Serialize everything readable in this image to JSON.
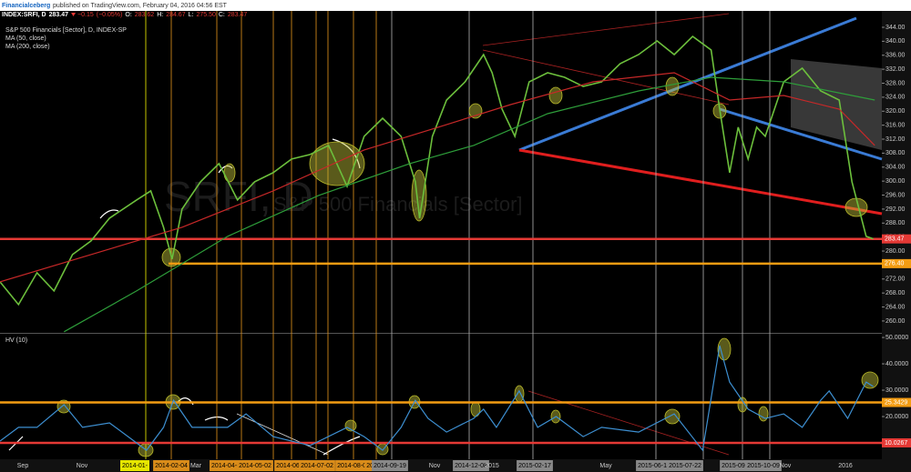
{
  "chart_data": [
    {
      "type": "line",
      "author": "Financialceberg",
      "published": "published on TradingView.com, February 04, 2016 04:56 EST",
      "symbol": "INDEX:SRFI, D",
      "last": 283.47,
      "change": {
        "value": -0.15,
        "label": "−0.15"
      },
      "change_pct": {
        "value": -0.05,
        "label": "(−0.05%)"
      },
      "ohlc_names": [
        "O:",
        "H:",
        "L:",
        "C:"
      ],
      "ohlc_values": [
        283.62,
        284.67,
        {
          "value": 275.5,
          "label": "275.50"
        },
        283.47
      ],
      "title": "S&P 500 Financials [Sector], D, INDEX-SP",
      "watermark": [
        "SRFI, D",
        "S&P 500 Financials [Sector]"
      ],
      "xlim": [
        0,
        620
      ],
      "ylim": [
        256.6,
        346.6
      ],
      "yticks": [
        {
          "value": 260,
          "label": "260.00"
        },
        {
          "value": 264,
          "label": "264.00"
        },
        {
          "value": 268,
          "label": "268.00"
        },
        {
          "value": 272,
          "label": "272.00"
        },
        {
          "value": 276,
          "label": "276.00"
        },
        {
          "value": 280,
          "label": "280.00"
        },
        {
          "value": 284,
          "label": "284.00"
        },
        {
          "value": 288,
          "label": "288.00"
        },
        {
          "value": 292,
          "label": "292.00"
        },
        {
          "value": 296,
          "label": "296.00"
        },
        {
          "value": 300,
          "label": "300.00"
        },
        {
          "value": 304,
          "label": "304.00"
        },
        {
          "value": 308,
          "label": "308.00"
        },
        {
          "value": 312,
          "label": "312.00"
        },
        {
          "value": 316,
          "label": "316.00"
        },
        {
          "value": 320,
          "label": "320.00"
        },
        {
          "value": 324,
          "label": "324.00"
        },
        {
          "value": 328,
          "label": "328.00"
        },
        {
          "value": 332,
          "label": "332.00"
        },
        {
          "value": 336,
          "label": "336.00"
        },
        {
          "value": 340,
          "label": "340.00"
        },
        {
          "value": 344,
          "label": "344.00"
        }
      ],
      "x_labels": [
        "Sep",
        "Nov",
        "2014-01-",
        "2014-02-04",
        "Mar",
        "2014-04-0",
        "2014-05-02",
        "2014-06",
        "2014-07-02",
        "2014-08-08",
        "2014",
        "2014-09-19",
        "Nov",
        "2014-12-08",
        "2015",
        "2015-02-17",
        "May",
        "2015-06-18",
        "2015-07-22",
        "S",
        "2015-09",
        "2015-10-09",
        "Nov",
        "2016"
      ],
      "series": [
        {
          "color": "#6cbf3c",
          "x": [
            0,
            13,
            26,
            38,
            51,
            64,
            77,
            96,
            106,
            115,
            121,
            128,
            141,
            154,
            167,
            179,
            192,
            205,
            218,
            231,
            244,
            256,
            269,
            282,
            292,
            295,
            304,
            314,
            327,
            340,
            346,
            353,
            362,
            372,
            385,
            397,
            410,
            423,
            436,
            449,
            462,
            474,
            487,
            500,
            506,
            513,
            519,
            526,
            532,
            538,
            551,
            564,
            577,
            590,
            599,
            609,
            614
          ],
          "values": [
            271.2,
            264.7,
            273.8,
            268.6,
            279,
            282.9,
            289.4,
            294.6,
            297.2,
            286.8,
            277.7,
            292,
            299.8,
            305,
            294.6,
            299.8,
            302.4,
            306.3,
            307.6,
            310.2,
            298.5,
            312.8,
            318,
            312.8,
            299.8,
            289.4,
            312.8,
            323.2,
            328.4,
            336.2,
            331,
            320.6,
            312.8,
            328.4,
            331,
            329.7,
            327.1,
            328.4,
            333.6,
            336.2,
            340.1,
            336.2,
            341.4,
            337.5,
            320.6,
            302.4,
            315.4,
            306.3,
            315.4,
            312.8,
            328.4,
            332.3,
            325.8,
            323.2,
            299.8,
            284.2,
            283.5
          ]
        },
        {
          "name": "MA (50, close)",
          "color": "#c62828",
          "x": [
            0,
            64,
            128,
            192,
            256,
            308,
            359,
            417,
            474,
            513,
            551,
            590,
            615
          ],
          "values": [
            271.2,
            279,
            286.8,
            297.2,
            308.9,
            315.4,
            321.9,
            328.4,
            331,
            323.2,
            324.5,
            320.6,
            310.2
          ]
        },
        {
          "name": "MA (200, close)",
          "color": "#2e9e3a",
          "x": [
            45,
            96,
            160,
            224,
            288,
            333,
            385,
            449,
            500,
            551,
            615
          ],
          "values": [
            256.9,
            268.6,
            284.2,
            295.9,
            305,
            310.2,
            319.3,
            325.8,
            329.7,
            328.4,
            323.2
          ]
        }
      ],
      "levels": [
        {
          "value": 283.47,
          "color": "#e53935"
        },
        {
          "value": 276.4,
          "label": "276.40",
          "color": "#f39c12"
        }
      ]
    },
    {
      "type": "line",
      "title": "HV (10)",
      "xlim": [
        0,
        620
      ],
      "ylim": [
        3.8,
        51.4
      ],
      "yticks": [
        {
          "value": 10,
          "label": "10.0000"
        },
        {
          "value": 20,
          "label": "20.0000"
        },
        {
          "value": 30,
          "label": "30.0000"
        },
        {
          "value": 40,
          "label": "40.0000"
        },
        {
          "value": 50,
          "label": "50.0000"
        }
      ],
      "series": [
        {
          "color": "#3d8fd1",
          "x": [
            0,
            13,
            26,
            45,
            58,
            77,
            103,
            115,
            122,
            135,
            160,
            173,
            192,
            218,
            244,
            256,
            269,
            282,
            292,
            301,
            314,
            333,
            340,
            349,
            365,
            378,
            391,
            410,
            423,
            449,
            474,
            494,
            506,
            513,
            526,
            538,
            551,
            564,
            577,
            583,
            596,
            609,
            614
          ],
          "values": [
            10.7,
            15.9,
            15.9,
            24.5,
            15.9,
            17.6,
            7.2,
            15.9,
            26.2,
            15.9,
            15.9,
            21,
            12.4,
            9,
            15.9,
            12.4,
            7.2,
            15.9,
            26.2,
            19.3,
            14.1,
            19.3,
            22.8,
            15.9,
            29.7,
            15.9,
            20,
            12.4,
            15.9,
            14.1,
            21,
            7.2,
            46.9,
            33.1,
            22.8,
            19.3,
            21,
            15.9,
            26.2,
            29.7,
            19.3,
            33.1,
            31.4
          ]
        }
      ],
      "levels": [
        {
          "value": 25.3429,
          "color": "#f39c12"
        },
        {
          "value": 10.0267,
          "color": "#e53935"
        }
      ]
    }
  ]
}
